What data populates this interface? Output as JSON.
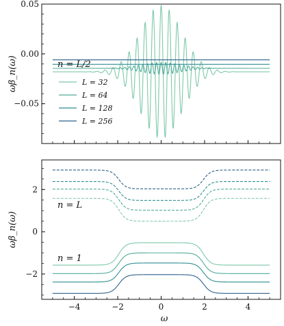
{
  "chart_data": [
    {
      "type": "line",
      "ylabel": "ωβ_n(ω)",
      "annotation": "n = L/2",
      "xlim": [
        -5.5,
        5.5
      ],
      "ylim": [
        -0.09,
        0.05
      ],
      "x_ticks": [
        "−4",
        "−2",
        "0",
        "2",
        "4"
      ],
      "x_ticks_shown": false,
      "y_ticks": [
        {
          "value": 0.05,
          "label": "0.05"
        },
        {
          "value": 0.0,
          "label": "0.00"
        },
        {
          "value": -0.05,
          "label": "−0.05"
        }
      ],
      "legend": {
        "placement": "left",
        "entries": [
          "L = 32",
          "L = 64",
          "L = 128",
          "L = 256"
        ]
      },
      "series": [
        {
          "name": "L = 32",
          "color": "#7cc8a8",
          "baseline": -0.018,
          "osc_amp": 0.067,
          "osc_freq": 17,
          "osc_width": 0.95
        },
        {
          "name": "L = 64",
          "color": "#4faa98",
          "baseline": -0.0145,
          "osc_amp": 0.006,
          "osc_freq": 30,
          "osc_width": 0.9
        },
        {
          "name": "L = 128",
          "color": "#2e8c91",
          "baseline": -0.0105,
          "osc_amp": 0,
          "osc_freq": 0,
          "osc_width": 1
        },
        {
          "name": "L = 256",
          "color": "#2c5f8a",
          "baseline": -0.006,
          "osc_amp": 0,
          "osc_freq": 0,
          "osc_width": 1
        }
      ]
    },
    {
      "type": "line",
      "xlabel": "ω",
      "ylabel": "ωβ_n(ω)",
      "annotations": [
        "n = L",
        "n = 1"
      ],
      "xlim": [
        -5.5,
        5.5
      ],
      "ylim": [
        -3.2,
        3.4
      ],
      "x_ticks": [
        {
          "value": -4,
          "label": "−4"
        },
        {
          "value": -2,
          "label": "−2"
        },
        {
          "value": 0,
          "label": "0"
        },
        {
          "value": 2,
          "label": "2"
        },
        {
          "value": 4,
          "label": "4"
        }
      ],
      "y_ticks": [
        {
          "value": 2,
          "label": "2"
        },
        {
          "value": 0,
          "label": "0"
        },
        {
          "value": -2,
          "label": "−2"
        }
      ],
      "series": [
        {
          "group": "n = L",
          "style": "dashed",
          "color": "#2c5f8a",
          "outer": 2.92,
          "inner": 2.03
        },
        {
          "group": "n = L",
          "style": "dashed",
          "color": "#2e8c91",
          "outer": 2.38,
          "inner": 1.48
        },
        {
          "group": "n = L",
          "style": "dashed",
          "color": "#4faa98",
          "outer": 2.02,
          "inner": 1.02
        },
        {
          "group": "n = L",
          "style": "dashed",
          "color": "#7cc8a8",
          "outer": 1.58,
          "inner": 0.5
        },
        {
          "group": "n = 1",
          "style": "solid",
          "color": "#7cc8a8",
          "outer": -1.58,
          "inner": -0.52
        },
        {
          "group": "n = 1",
          "style": "solid",
          "color": "#4faa98",
          "outer": -1.98,
          "inner": -1.0
        },
        {
          "group": "n = 1",
          "style": "solid",
          "color": "#2e8c91",
          "outer": -2.38,
          "inner": -1.48
        },
        {
          "group": "n = 1",
          "style": "solid",
          "color": "#2c5f8a",
          "outer": -2.92,
          "inner": -2.03
        }
      ]
    }
  ]
}
